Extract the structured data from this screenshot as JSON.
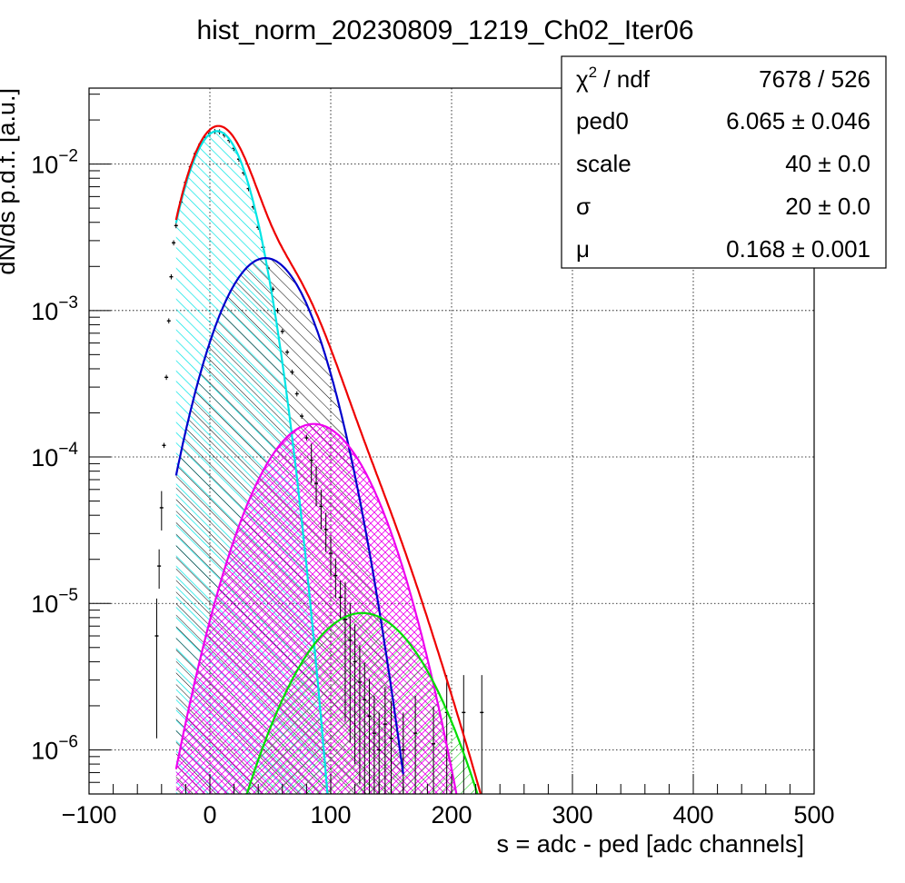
{
  "chart_data": {
    "type": "histogram-fit",
    "title": "hist_norm_20230809_1219_Ch02_Iter06",
    "xlabel": "s = adc - ped [adc channels]",
    "ylabel": "dN/ds p.d.f. [a.u.]",
    "xlim": [
      -100,
      500
    ],
    "ylim": [
      5e-07,
      0.033
    ],
    "yscale": "log",
    "grid": true,
    "x_ticks": [
      {
        "value": -100,
        "label": "−100"
      },
      {
        "value": 0,
        "label": "0"
      },
      {
        "value": 100,
        "label": "100"
      },
      {
        "value": 200,
        "label": "200"
      },
      {
        "value": 300,
        "label": "300"
      },
      {
        "value": 400,
        "label": "400"
      },
      {
        "value": 500,
        "label": "500"
      }
    ],
    "y_ticks": [
      {
        "value": 1e-06,
        "base": "10",
        "exp": "−6"
      },
      {
        "value": 1e-05,
        "base": "10",
        "exp": "−5"
      },
      {
        "value": 0.0001,
        "base": "10",
        "exp": "−4"
      },
      {
        "value": 0.001,
        "base": "10",
        "exp": "−3"
      },
      {
        "value": 0.01,
        "base": "10",
        "exp": "−2"
      }
    ],
    "stats_box": {
      "placement": "top-right",
      "rows": [
        {
          "label": "χ",
          "sup": "2",
          "suffix": " / ndf",
          "value": "7678 / 526"
        },
        {
          "label": "ped0",
          "value": "6.065 ± 0.046"
        },
        {
          "label": "scale",
          "value": "40 ± 0.0"
        },
        {
          "label": "σ",
          "value": "20 ± 0.0"
        },
        {
          "label": "μ",
          "value": "0.168 ± 0.001"
        }
      ]
    },
    "components": [
      {
        "color": "#00e5e5",
        "peak_x": 6,
        "peak_y": 0.0168,
        "sigma": 20.0,
        "x_range": [
          -28,
          115
        ],
        "hatch": "cyan-diagonal"
      },
      {
        "color": "#0000cc",
        "peak_x": 46,
        "peak_y": 0.00228,
        "sigma": 28.3,
        "x_range": [
          -28,
          160
        ],
        "hatch": "black-diagonal"
      },
      {
        "color": "#ee00ee",
        "peak_x": 86,
        "peak_y": 0.000168,
        "sigma": 34.6,
        "x_range": [
          -28,
          210
        ],
        "hatch": "magenta-cross"
      },
      {
        "color": "#00dd00",
        "peak_x": 126,
        "peak_y": 8.6e-06,
        "sigma": 40.0,
        "x_range": [
          -28,
          250
        ],
        "hatch": "green-diagonal"
      }
    ],
    "total_fit": {
      "color": "#ee0000",
      "x_range": [
        -28,
        230
      ]
    },
    "data_points": [
      {
        "x": -44,
        "y": 6e-06
      },
      {
        "x": -42,
        "y": 1.8e-05
      },
      {
        "x": -40,
        "y": 4.5e-05
      },
      {
        "x": -38,
        "y": 0.00012
      },
      {
        "x": -36,
        "y": 0.00035
      },
      {
        "x": -34,
        "y": 0.00085
      },
      {
        "x": -32,
        "y": 0.0017
      },
      {
        "x": -30,
        "y": 0.0029
      },
      {
        "x": -28,
        "y": 0.0038
      },
      {
        "x": -24,
        "y": 0.0055
      },
      {
        "x": -20,
        "y": 0.0075
      },
      {
        "x": -16,
        "y": 0.0096
      },
      {
        "x": -12,
        "y": 0.0118
      },
      {
        "x": -8,
        "y": 0.0137
      },
      {
        "x": -4,
        "y": 0.0152
      },
      {
        "x": 0,
        "y": 0.0162
      },
      {
        "x": 4,
        "y": 0.0167
      },
      {
        "x": 8,
        "y": 0.0166
      },
      {
        "x": 12,
        "y": 0.0158
      },
      {
        "x": 16,
        "y": 0.0145
      },
      {
        "x": 20,
        "y": 0.0128
      },
      {
        "x": 24,
        "y": 0.0108
      },
      {
        "x": 28,
        "y": 0.0087
      },
      {
        "x": 32,
        "y": 0.0068
      },
      {
        "x": 36,
        "y": 0.0051
      },
      {
        "x": 40,
        "y": 0.0037
      },
      {
        "x": 44,
        "y": 0.0027
      },
      {
        "x": 48,
        "y": 0.00195
      },
      {
        "x": 52,
        "y": 0.0014
      },
      {
        "x": 56,
        "y": 0.001
      },
      {
        "x": 60,
        "y": 0.00072
      },
      {
        "x": 64,
        "y": 0.00052
      },
      {
        "x": 68,
        "y": 0.00038
      },
      {
        "x": 72,
        "y": 0.00027
      },
      {
        "x": 76,
        "y": 0.00019
      },
      {
        "x": 80,
        "y": 0.000135
      },
      {
        "x": 84,
        "y": 9.5e-05
      },
      {
        "x": 88,
        "y": 6.6e-05
      },
      {
        "x": 92,
        "y": 4.6e-05
      },
      {
        "x": 96,
        "y": 3.2e-05
      },
      {
        "x": 100,
        "y": 2.2e-05
      },
      {
        "x": 104,
        "y": 1.55e-05
      },
      {
        "x": 108,
        "y": 1.1e-05
      },
      {
        "x": 112,
        "y": 7.8e-06
      },
      {
        "x": 116,
        "y": 5.6e-06
      },
      {
        "x": 120,
        "y": 4e-06
      },
      {
        "x": 124,
        "y": 2.9e-06
      },
      {
        "x": 128,
        "y": 2.2e-06
      },
      {
        "x": 132,
        "y": 1.7e-06
      },
      {
        "x": 136,
        "y": 1.3e-06
      },
      {
        "x": 140,
        "y": 1e-06
      },
      {
        "x": 145,
        "y": 1.5e-06
      },
      {
        "x": 150,
        "y": 1.2e-06
      },
      {
        "x": 160,
        "y": 1e-06
      },
      {
        "x": 170,
        "y": 1.3e-06
      },
      {
        "x": 185,
        "y": 1.1e-06
      },
      {
        "x": 196,
        "y": 1.8e-06
      },
      {
        "x": 210,
        "y": 1.8e-06
      },
      {
        "x": 225,
        "y": 1.8e-06
      }
    ]
  }
}
